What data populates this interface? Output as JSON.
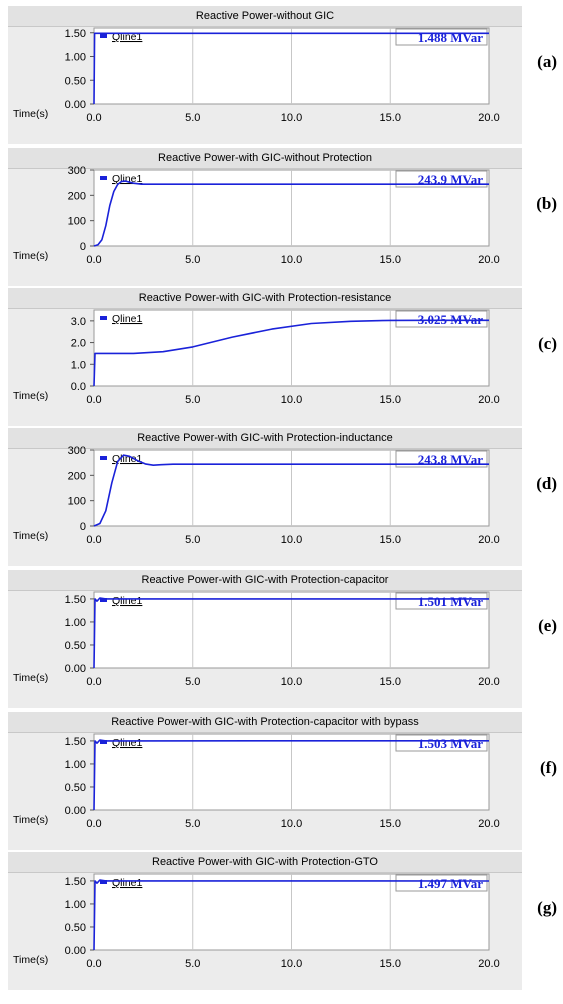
{
  "axis_label": "Time(s)",
  "colors": {
    "series": "#1a22d9",
    "grid": "#c7c7c7",
    "panel_bg": "#ececec",
    "plot_bg": "#ffffff"
  },
  "chart_data": [
    {
      "type": "line",
      "panel_label": "(a)",
      "title": "Reactive Power-without GIC",
      "legend": "Qline1",
      "value_box": "1.488 MVar",
      "xlabel": "Time(s)",
      "xlim": [
        0,
        20
      ],
      "x_ticks": [
        0,
        5,
        10,
        15,
        20
      ],
      "x_tick_labels": [
        "0.0",
        "5.0",
        "10.0",
        "15.0",
        "20.0"
      ],
      "ylim": [
        0,
        1.6
      ],
      "y_ticks": [
        0,
        0.5,
        1.0,
        1.5
      ],
      "y_tick_labels": [
        "0.00",
        "0.50",
        "1.00",
        "1.50"
      ],
      "series": [
        {
          "values": [
            [
              0,
              0
            ],
            [
              0.03,
              1.488
            ],
            [
              20,
              1.488
            ]
          ]
        }
      ]
    },
    {
      "type": "line",
      "panel_label": "(b)",
      "title": "Reactive Power-with GIC-without Protection",
      "legend": "Qline1",
      "value_box": "243.9 MVar",
      "xlabel": "Time(s)",
      "xlim": [
        0,
        20
      ],
      "x_ticks": [
        0,
        5,
        10,
        15,
        20
      ],
      "x_tick_labels": [
        "0.0",
        "5.0",
        "10.0",
        "15.0",
        "20.0"
      ],
      "ylim": [
        0,
        300
      ],
      "y_ticks": [
        0,
        100,
        200,
        300
      ],
      "y_tick_labels": [
        "0",
        "100",
        "200",
        "300"
      ],
      "series": [
        {
          "values": [
            [
              0,
              0
            ],
            [
              0.2,
              5
            ],
            [
              0.4,
              25
            ],
            [
              0.6,
              80
            ],
            [
              0.8,
              160
            ],
            [
              1.0,
              215
            ],
            [
              1.2,
              243
            ],
            [
              1.4,
              255
            ],
            [
              1.6,
              256
            ],
            [
              1.8,
              252
            ],
            [
              2.0,
              248
            ],
            [
              2.4,
              244
            ],
            [
              3,
              244
            ],
            [
              20,
              244
            ]
          ]
        }
      ]
    },
    {
      "type": "line",
      "panel_label": "(c)",
      "title": "Reactive Power-with GIC-with Protection-resistance",
      "legend": "Qline1",
      "value_box": "3.025 MVar",
      "xlabel": "Time(s)",
      "xlim": [
        0,
        20
      ],
      "x_ticks": [
        0,
        5,
        10,
        15,
        20
      ],
      "x_tick_labels": [
        "0.0",
        "5.0",
        "10.0",
        "15.0",
        "20.0"
      ],
      "ylim": [
        0,
        3.5
      ],
      "y_ticks": [
        0,
        1,
        2,
        3
      ],
      "y_tick_labels": [
        "0.0",
        "1.0",
        "2.0",
        "3.0"
      ],
      "series": [
        {
          "values": [
            [
              0,
              0
            ],
            [
              0.05,
              1.5
            ],
            [
              2,
              1.5
            ],
            [
              3.5,
              1.58
            ],
            [
              5,
              1.8
            ],
            [
              7,
              2.25
            ],
            [
              9,
              2.62
            ],
            [
              11,
              2.88
            ],
            [
              13,
              2.98
            ],
            [
              15,
              3.02
            ],
            [
              17,
              3.025
            ],
            [
              20,
              3.025
            ]
          ]
        }
      ]
    },
    {
      "type": "line",
      "panel_label": "(d)",
      "title": "Reactive Power-with GIC-with Protection-inductance",
      "legend": "Qline1",
      "value_box": "243.8 MVar",
      "xlabel": "Time(s)",
      "xlim": [
        0,
        20
      ],
      "x_ticks": [
        0,
        5,
        10,
        15,
        20
      ],
      "x_tick_labels": [
        "0.0",
        "5.0",
        "10.0",
        "15.0",
        "20.0"
      ],
      "ylim": [
        0,
        300
      ],
      "y_ticks": [
        0,
        100,
        200,
        300
      ],
      "y_tick_labels": [
        "0",
        "100",
        "200",
        "300"
      ],
      "series": [
        {
          "values": [
            [
              0,
              0
            ],
            [
              0.3,
              10
            ],
            [
              0.6,
              60
            ],
            [
              0.9,
              170
            ],
            [
              1.2,
              255
            ],
            [
              1.5,
              280
            ],
            [
              1.8,
              275
            ],
            [
              2.2,
              258
            ],
            [
              2.6,
              245
            ],
            [
              3.0,
              240
            ],
            [
              3.4,
              242
            ],
            [
              4,
              244
            ],
            [
              20,
              244
            ]
          ]
        }
      ]
    },
    {
      "type": "line",
      "panel_label": "(e)",
      "title": "Reactive Power-with GIC-with Protection-capacitor",
      "legend": "Qline1",
      "value_box": "1.501 MVar",
      "xlabel": "Time(s)",
      "xlim": [
        0,
        20
      ],
      "x_ticks": [
        0,
        5,
        10,
        15,
        20
      ],
      "x_tick_labels": [
        "0.0",
        "5.0",
        "10.0",
        "15.0",
        "20.0"
      ],
      "ylim": [
        0,
        1.65
      ],
      "y_ticks": [
        0,
        0.5,
        1.0,
        1.5
      ],
      "y_tick_labels": [
        "0.00",
        "0.50",
        "1.00",
        "1.50"
      ],
      "series": [
        {
          "values": [
            [
              0,
              0
            ],
            [
              0.05,
              1.5
            ],
            [
              0.15,
              1.45
            ],
            [
              0.3,
              1.52
            ],
            [
              0.6,
              1.5
            ],
            [
              20,
              1.501
            ]
          ]
        }
      ]
    },
    {
      "type": "line",
      "panel_label": "(f)",
      "title": "Reactive Power-with GIC-with Protection-capacitor with bypass",
      "legend": "Qline1",
      "value_box": "1.503 MVar",
      "xlabel": "Time(s)",
      "xlim": [
        0,
        20
      ],
      "x_ticks": [
        0,
        5,
        10,
        15,
        20
      ],
      "x_tick_labels": [
        "0.0",
        "5.0",
        "10.0",
        "15.0",
        "20.0"
      ],
      "ylim": [
        0,
        1.65
      ],
      "y_ticks": [
        0,
        0.5,
        1.0,
        1.5
      ],
      "y_tick_labels": [
        "0.00",
        "0.50",
        "1.00",
        "1.50"
      ],
      "series": [
        {
          "values": [
            [
              0,
              0
            ],
            [
              0.05,
              1.5
            ],
            [
              0.15,
              1.45
            ],
            [
              0.3,
              1.52
            ],
            [
              0.6,
              1.5
            ],
            [
              20,
              1.503
            ]
          ]
        }
      ]
    },
    {
      "type": "line",
      "panel_label": "(g)",
      "title": "Reactive Power-with GIC-with Protection-GTO",
      "legend": "Qline1",
      "value_box": "1.497 MVar",
      "xlabel": "Time(s)",
      "xlim": [
        0,
        20
      ],
      "x_ticks": [
        0,
        5,
        10,
        15,
        20
      ],
      "x_tick_labels": [
        "0.0",
        "5.0",
        "10.0",
        "15.0",
        "20.0"
      ],
      "ylim": [
        0,
        1.65
      ],
      "y_ticks": [
        0,
        0.5,
        1.0,
        1.5
      ],
      "y_tick_labels": [
        "0.00",
        "0.50",
        "1.00",
        "1.50"
      ],
      "series": [
        {
          "values": [
            [
              0,
              0
            ],
            [
              0.05,
              1.5
            ],
            [
              0.15,
              1.45
            ],
            [
              0.3,
              1.52
            ],
            [
              0.6,
              1.5
            ],
            [
              20,
              1.497
            ]
          ]
        }
      ]
    }
  ]
}
